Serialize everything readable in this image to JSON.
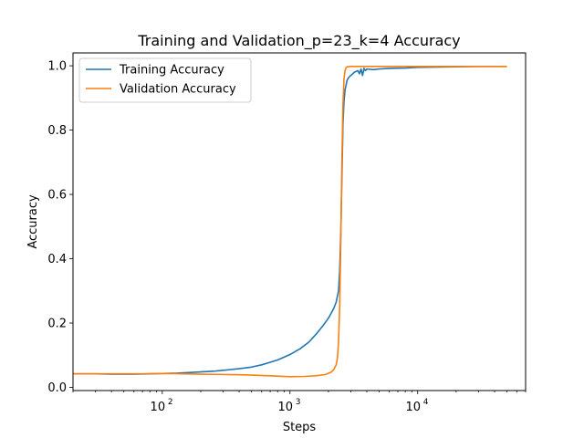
{
  "chart_data": {
    "type": "line",
    "title": "Training and Validation_p=23_k=4 Accuracy",
    "xlabel": "Steps",
    "ylabel": "Accuracy",
    "xscale": "log",
    "xlim": [
      20,
      70000
    ],
    "ylim": [
      -0.01,
      1.04
    ],
    "xticks": [
      {
        "value": 100,
        "base": "10",
        "exp": "2"
      },
      {
        "value": 1000,
        "base": "10",
        "exp": "3"
      },
      {
        "value": 10000,
        "base": "10",
        "exp": "4"
      }
    ],
    "yticks": [
      {
        "value": 0.0,
        "label": "0.0"
      },
      {
        "value": 0.2,
        "label": "0.2"
      },
      {
        "value": 0.4,
        "label": "0.4"
      },
      {
        "value": 0.6,
        "label": "0.6"
      },
      {
        "value": 0.8,
        "label": "0.8"
      },
      {
        "value": 1.0,
        "label": "1.0"
      }
    ],
    "grid": false,
    "legend_position": "top-left",
    "series": [
      {
        "name": "Training Accuracy",
        "color": "#1f77b4",
        "x": [
          20,
          30,
          40,
          60,
          80,
          100,
          130,
          160,
          200,
          250,
          300,
          400,
          500,
          600,
          700,
          800,
          900,
          1000,
          1200,
          1400,
          1600,
          1800,
          2000,
          2200,
          2300,
          2400,
          2450,
          2500,
          2550,
          2600,
          2650,
          2700,
          2750,
          2800,
          2900,
          3000,
          3200,
          3400,
          3500,
          3600,
          3700,
          3800,
          3900,
          4000,
          4500,
          5000,
          6000,
          8000,
          10000,
          15000,
          20000,
          30000,
          50000
        ],
        "y": [
          0.042,
          0.042,
          0.041,
          0.041,
          0.042,
          0.043,
          0.044,
          0.046,
          0.048,
          0.05,
          0.053,
          0.058,
          0.063,
          0.07,
          0.078,
          0.085,
          0.094,
          0.102,
          0.12,
          0.14,
          0.165,
          0.19,
          0.215,
          0.245,
          0.265,
          0.3,
          0.36,
          0.48,
          0.65,
          0.82,
          0.89,
          0.925,
          0.94,
          0.955,
          0.965,
          0.97,
          0.98,
          0.985,
          0.975,
          0.99,
          0.97,
          0.992,
          0.985,
          0.99,
          0.988,
          0.99,
          0.992,
          0.993,
          0.995,
          0.996,
          0.997,
          0.998,
          0.998
        ]
      },
      {
        "name": "Validation Accuracy",
        "color": "#ff7f0e",
        "x": [
          20,
          30,
          50,
          70,
          100,
          150,
          200,
          300,
          400,
          500,
          700,
          1000,
          1300,
          1600,
          1900,
          2100,
          2200,
          2300,
          2350,
          2400,
          2450,
          2500,
          2550,
          2600,
          2650,
          2700,
          2750,
          2800,
          3000,
          4000,
          6000,
          10000,
          20000,
          50000
        ],
        "y": [
          0.042,
          0.042,
          0.042,
          0.042,
          0.043,
          0.042,
          0.041,
          0.04,
          0.039,
          0.038,
          0.036,
          0.033,
          0.034,
          0.036,
          0.04,
          0.047,
          0.055,
          0.07,
          0.09,
          0.14,
          0.25,
          0.45,
          0.7,
          0.88,
          0.96,
          0.985,
          0.994,
          0.997,
          0.998,
          0.998,
          0.998,
          0.998,
          0.998,
          0.998
        ]
      }
    ]
  }
}
